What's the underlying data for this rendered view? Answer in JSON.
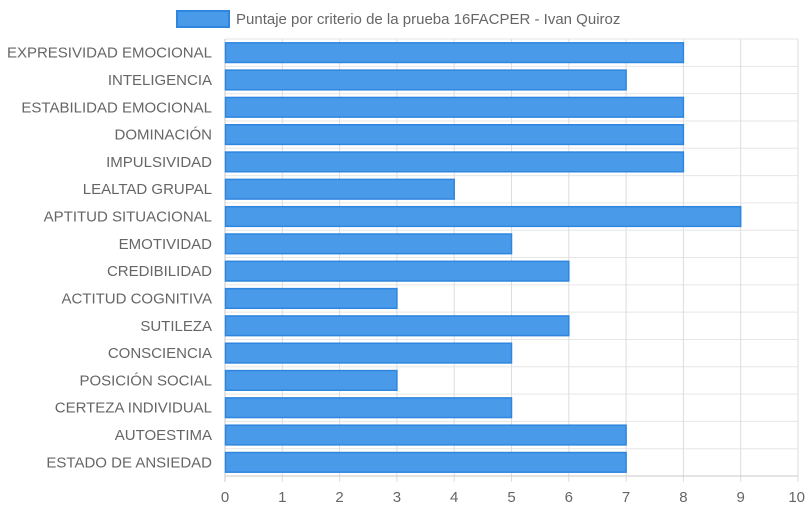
{
  "chart_data": {
    "type": "bar",
    "orientation": "horizontal",
    "legend_position": "top-center",
    "grid": true,
    "xlim": [
      0,
      10
    ],
    "x_ticks": [
      "0",
      "1",
      "2",
      "3",
      "4",
      "5",
      "6",
      "7",
      "8",
      "9",
      "10"
    ],
    "categories": [
      "EXPRESIVIDAD EMOCIONAL",
      "INTELIGENCIA",
      "ESTABILIDAD EMOCIONAL",
      "DOMINACIÓN",
      "IMPULSIVIDAD",
      "LEALTAD GRUPAL",
      "APTITUD SITUACIONAL",
      "EMOTIVIDAD",
      "CREDIBILIDAD",
      "ACTITUD COGNITIVA",
      "SUTILEZA",
      "CONSCIENCIA",
      "POSICIÓN SOCIAL",
      "CERTEZA INDIVIDUAL",
      "AUTOESTIMA",
      "ESTADO DE ANSIEDAD"
    ],
    "series": [
      {
        "name": "Puntaje por criterio de la prueba 16FACPER - Ivan Quiroz",
        "values": [
          8,
          7,
          8,
          8,
          8,
          4,
          9,
          5,
          6,
          3,
          6,
          5,
          3,
          5,
          7,
          7
        ],
        "color": "#4a9aea",
        "border_color": "#2e86de"
      }
    ]
  }
}
